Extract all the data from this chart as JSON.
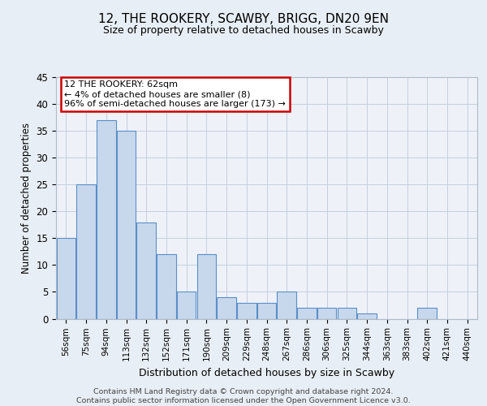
{
  "title1": "12, THE ROOKERY, SCAWBY, BRIGG, DN20 9EN",
  "title2": "Size of property relative to detached houses in Scawby",
  "xlabel": "Distribution of detached houses by size in Scawby",
  "ylabel": "Number of detached properties",
  "categories": [
    "56sqm",
    "75sqm",
    "94sqm",
    "113sqm",
    "132sqm",
    "152sqm",
    "171sqm",
    "190sqm",
    "209sqm",
    "229sqm",
    "248sqm",
    "267sqm",
    "286sqm",
    "306sqm",
    "325sqm",
    "344sqm",
    "363sqm",
    "383sqm",
    "402sqm",
    "421sqm",
    "440sqm"
  ],
  "values": [
    15,
    25,
    37,
    35,
    18,
    12,
    5,
    12,
    4,
    3,
    3,
    5,
    2,
    2,
    2,
    1,
    0,
    0,
    2,
    0,
    0
  ],
  "bar_color": "#c8d8ec",
  "bar_edge_color": "#5a8ec8",
  "annotation_text": "12 THE ROOKERY: 62sqm\n← 4% of detached houses are smaller (8)\n96% of semi-detached houses are larger (173) →",
  "annotation_box_color": "#ffffff",
  "annotation_box_edge_color": "#cc0000",
  "ylim": [
    0,
    45
  ],
  "yticks": [
    0,
    5,
    10,
    15,
    20,
    25,
    30,
    35,
    40,
    45
  ],
  "footer_text": "Contains HM Land Registry data © Crown copyright and database right 2024.\nContains public sector information licensed under the Open Government Licence v3.0.",
  "bg_color": "#e8eef5",
  "plot_bg_color": "#eef2f8",
  "grid_color": "#c5cedd"
}
